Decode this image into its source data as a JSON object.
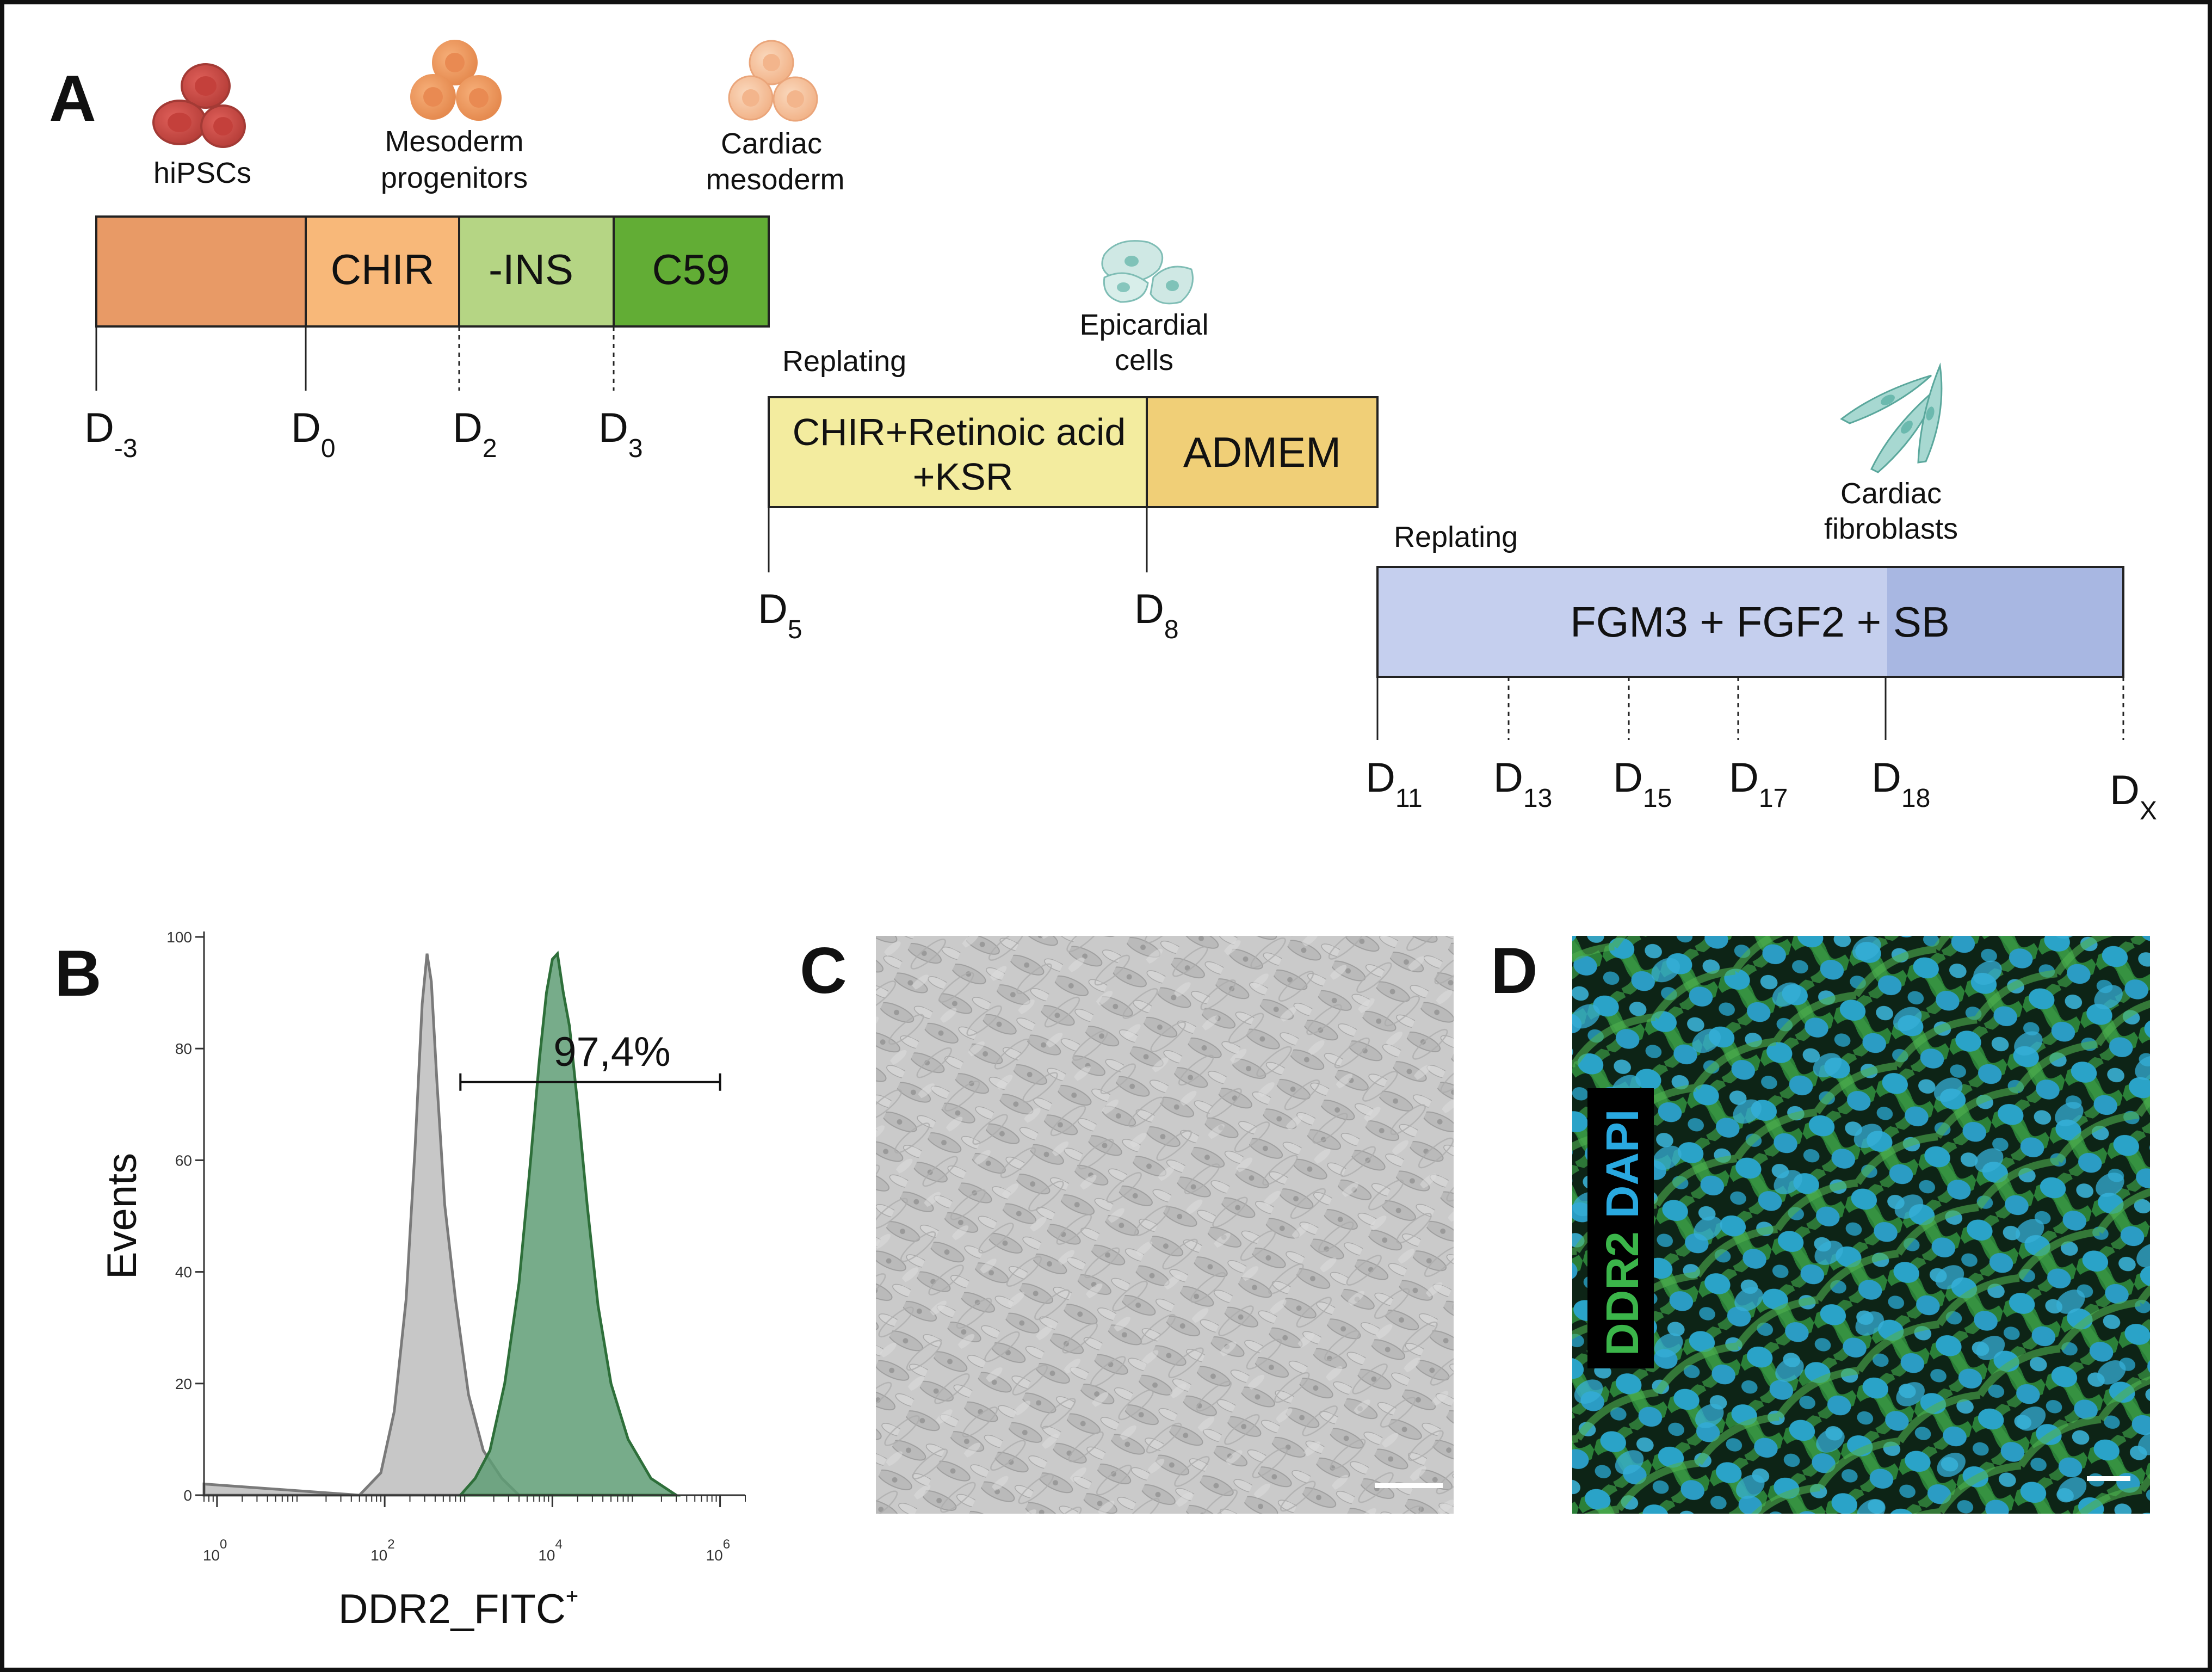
{
  "colors": {
    "pre": "#e89a66",
    "chir": "#f8b879",
    "ins": "#b5d584",
    "c59": "#62ad35",
    "epi1": "#f3ec9f",
    "epi2": "#f0cf77",
    "fgm": "#c5cfee",
    "fgm_end": "#a8b7e2",
    "grey_hist": "#c4c4c4",
    "green_hist": "#5f9d76",
    "green_line": "#2e6f3a"
  },
  "panelA": {
    "letter": "A",
    "cells": {
      "hipsc": "hiPSCs",
      "mesoderm": [
        "Mesoderm",
        "progenitors"
      ],
      "cardiac_mesoderm": [
        "Cardiac",
        "mesoderm"
      ],
      "epicardial": [
        "Epicardial",
        "cells"
      ],
      "fibroblasts": [
        "Cardiac",
        "fibroblasts"
      ]
    },
    "stage1": [
      "",
      "CHIR",
      "-INS",
      "C59"
    ],
    "stage2": {
      "seg1": [
        "CHIR+Retinoic acid",
        "+KSR"
      ],
      "seg2": "ADMEM"
    },
    "stage3": "FGM3 + FGF2 + SB",
    "replating": "Replating",
    "days1": [
      {
        "d": "D",
        "s": "-3"
      },
      {
        "d": "D",
        "s": "0"
      },
      {
        "d": "D",
        "s": "2"
      },
      {
        "d": "D",
        "s": "3"
      }
    ],
    "days2": [
      {
        "d": "D",
        "s": "5"
      },
      {
        "d": "D",
        "s": "8"
      }
    ],
    "days3": [
      {
        "d": "D",
        "s": "11"
      },
      {
        "d": "D",
        "s": "13"
      },
      {
        "d": "D",
        "s": "15"
      },
      {
        "d": "D",
        "s": "17"
      },
      {
        "d": "D",
        "s": "18"
      },
      {
        "d": "D",
        "s": "X"
      }
    ]
  },
  "panelB": {
    "letter": "B",
    "chart_data": {
      "type": "area",
      "xscale": "log",
      "xticks": [
        {
          "base": "10",
          "exp": "0",
          "v": 1
        },
        {
          "base": "10",
          "exp": "2",
          "v": 100
        },
        {
          "base": "10",
          "exp": "4",
          "v": 10000
        },
        {
          "base": "10",
          "exp": "6",
          "v": 1000000
        }
      ],
      "xlim": [
        0.7,
        2000000
      ],
      "yticks": [
        "0",
        "20",
        "40",
        "60",
        "80",
        "100"
      ],
      "ylim": [
        0,
        100
      ],
      "ylabel": "Events",
      "xlabel": "DDR2_FITC",
      "xlabel_sup": "+",
      "gate": {
        "label": "97,4%",
        "from": 800,
        "to": 1000000,
        "y": 74
      },
      "series": [
        {
          "color_key": "grey_hist",
          "points": [
            [
              0.7,
              2
            ],
            [
              50,
              0
            ],
            [
              90,
              4
            ],
            [
              130,
              15
            ],
            [
              180,
              35
            ],
            [
              230,
              62
            ],
            [
              280,
              88
            ],
            [
              320,
              97
            ],
            [
              360,
              92
            ],
            [
              420,
              74
            ],
            [
              520,
              52
            ],
            [
              700,
              35
            ],
            [
              1000,
              18
            ],
            [
              1500,
              8
            ],
            [
              2500,
              3
            ],
            [
              4000,
              0
            ]
          ]
        },
        {
          "color_key": "green_hist",
          "points": [
            [
              800,
              0
            ],
            [
              1200,
              3
            ],
            [
              1800,
              8
            ],
            [
              2700,
              20
            ],
            [
              4000,
              38
            ],
            [
              5500,
              60
            ],
            [
              7000,
              78
            ],
            [
              8500,
              90
            ],
            [
              10000,
              96
            ],
            [
              11500,
              97
            ],
            [
              13500,
              90
            ],
            [
              16000,
              84
            ],
            [
              20000,
              70
            ],
            [
              26000,
              52
            ],
            [
              35000,
              34
            ],
            [
              50000,
              20
            ],
            [
              80000,
              10
            ],
            [
              150000,
              3
            ],
            [
              300000,
              0
            ]
          ]
        }
      ]
    }
  },
  "panelC": {
    "letter": "C"
  },
  "panelD": {
    "letter": "D",
    "label1": "DDR2",
    "label2": "DAPI"
  }
}
